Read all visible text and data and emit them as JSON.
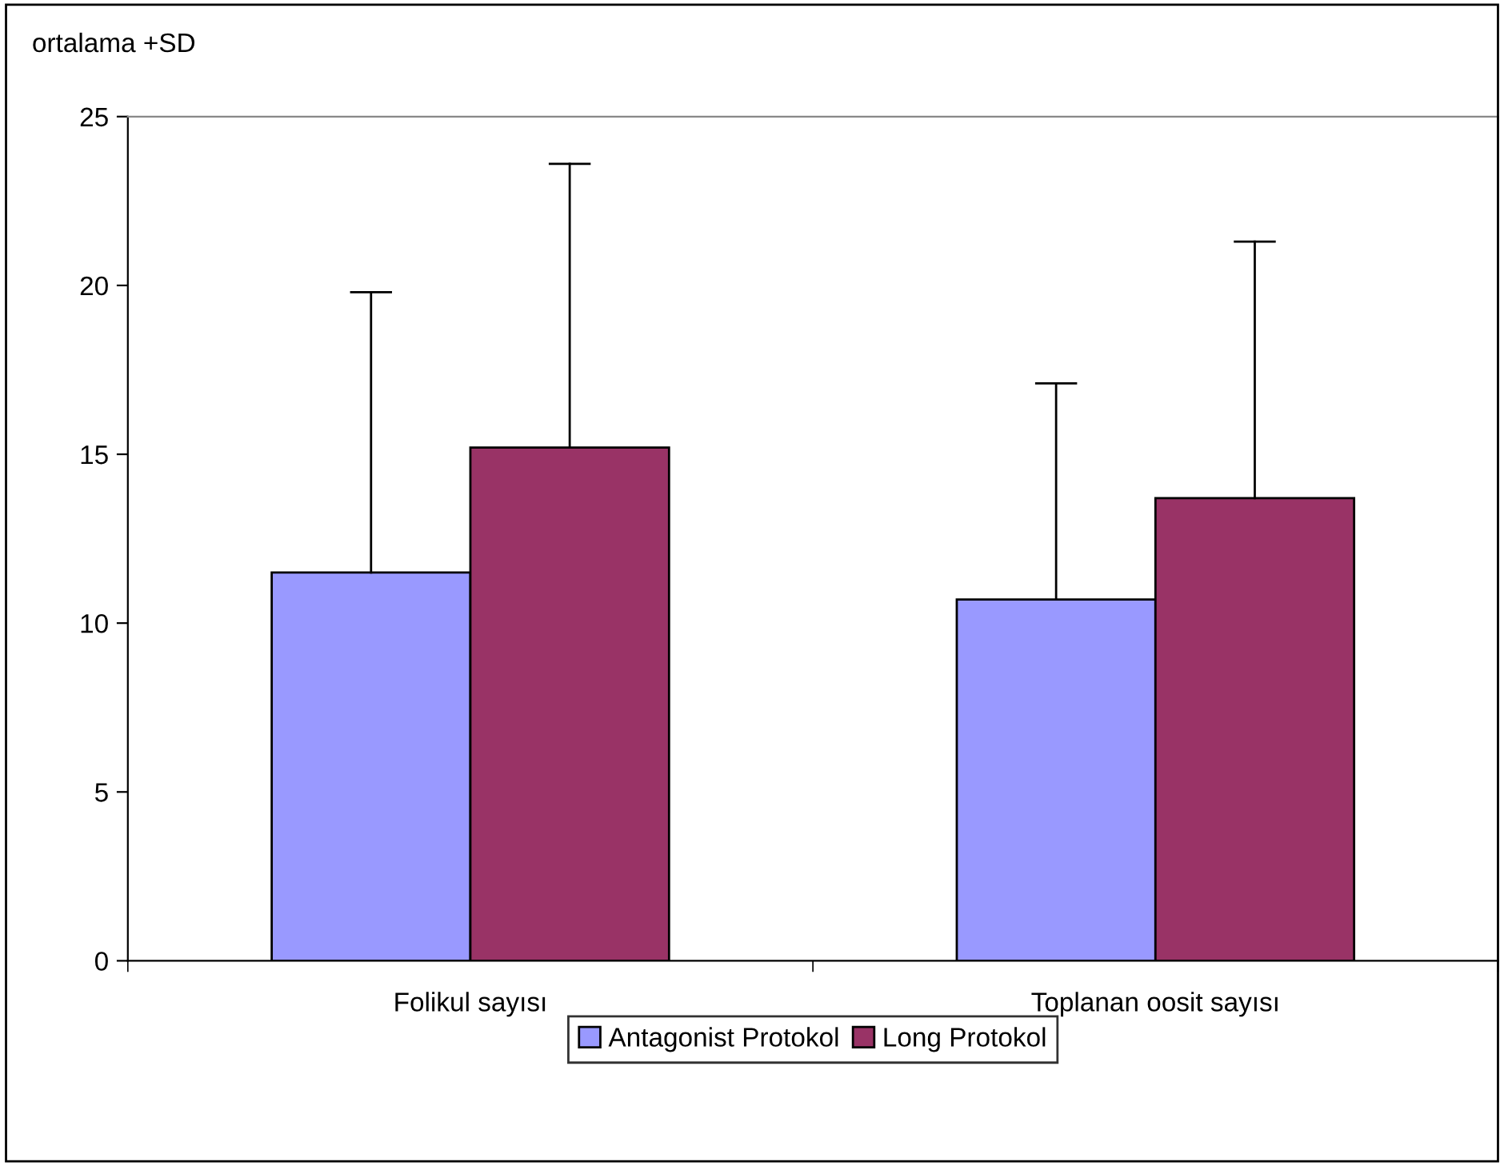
{
  "chart_data": {
    "type": "bar",
    "ylabel": "ortalama +SD",
    "categories": [
      "Folikul sayısı",
      "Toplanan oosit sayısı"
    ],
    "series": [
      {
        "name": "Antagonist Protokol",
        "color": "#9999ff",
        "values": [
          11.5,
          10.7
        ],
        "errors": [
          [
            11.5,
            19.8
          ],
          [
            10.7,
            17.1
          ]
        ]
      },
      {
        "name": "Long Protokol",
        "color": "#993366",
        "values": [
          15.2,
          13.7
        ],
        "errors": [
          [
            15.2,
            23.6
          ],
          [
            13.7,
            21.3
          ]
        ]
      }
    ],
    "ylim": [
      0,
      25
    ],
    "yticks": [
      0,
      5,
      10,
      15,
      20,
      25
    ],
    "grid": false,
    "legend": "bottom"
  }
}
